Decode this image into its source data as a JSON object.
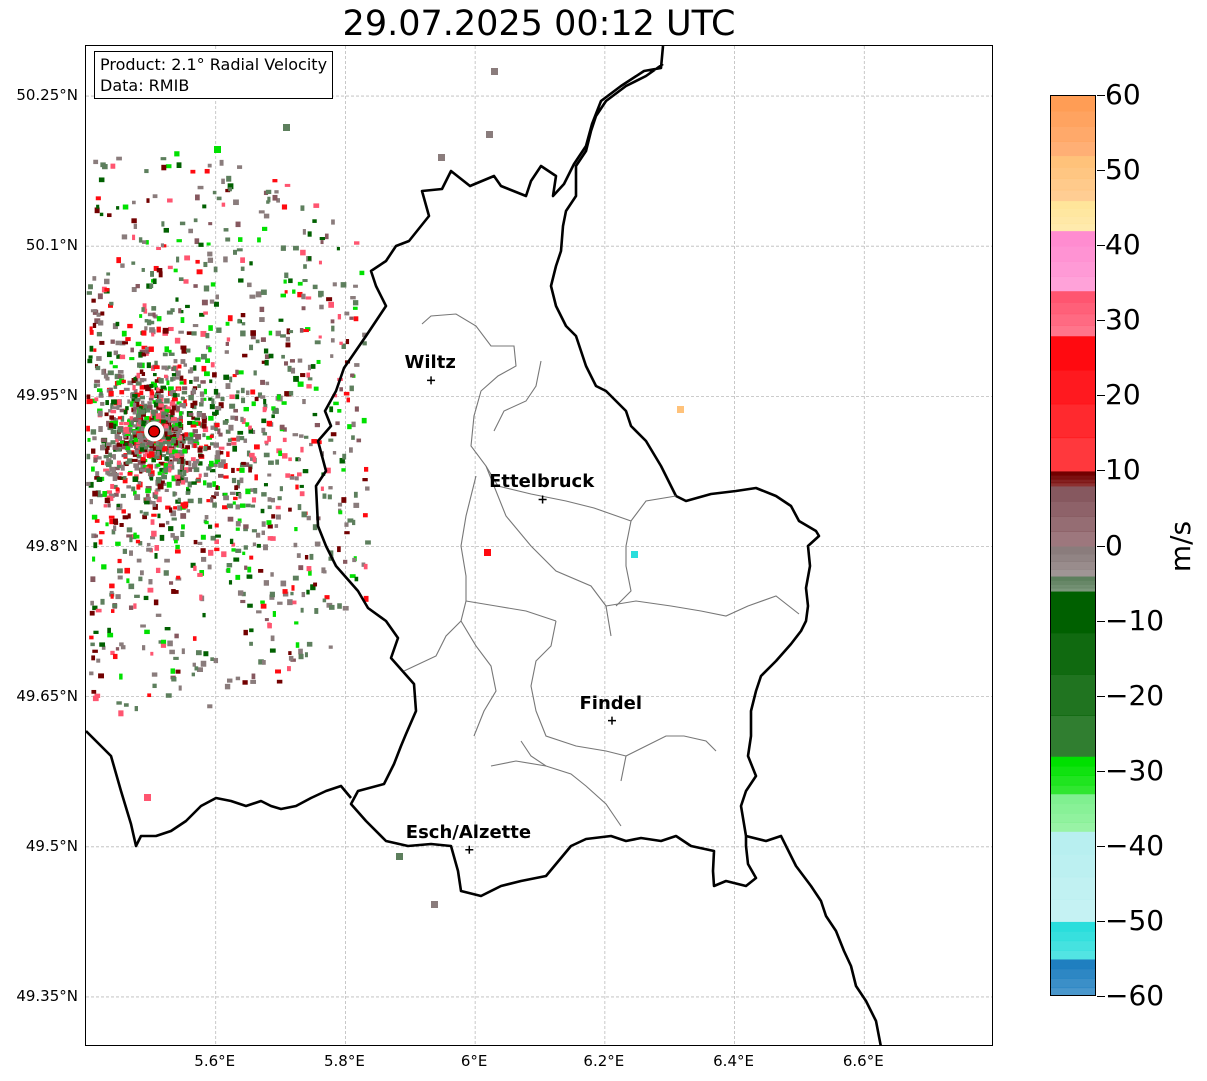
{
  "title": "29.07.2025 00:12 UTC",
  "info": {
    "product": "Product: 2.1° Radial Velocity",
    "source": "Data: RMIB"
  },
  "map": {
    "lat_range": [
      49.3,
      50.3
    ],
    "lon_range": [
      5.4,
      6.8
    ],
    "lat_ticks": [
      {
        "value": 50.25,
        "label": "50.25°N"
      },
      {
        "value": 50.1,
        "label": "50.1°N"
      },
      {
        "value": 49.95,
        "label": "49.95°N"
      },
      {
        "value": 49.8,
        "label": "49.8°N"
      },
      {
        "value": 49.65,
        "label": "49.65°N"
      },
      {
        "value": 49.5,
        "label": "49.5°N"
      },
      {
        "value": 49.35,
        "label": "49.35°N"
      }
    ],
    "lon_ticks": [
      {
        "value": 5.6,
        "label": "5.6°E"
      },
      {
        "value": 5.8,
        "label": "5.8°E"
      },
      {
        "value": 6.0,
        "label": "6°E"
      },
      {
        "value": 6.2,
        "label": "6.2°E"
      },
      {
        "value": 6.4,
        "label": "6.4°E"
      },
      {
        "value": 6.6,
        "label": "6.6°E"
      }
    ],
    "gridlines": true,
    "radar_site": {
      "lat": 49.915,
      "lon": 5.505
    },
    "cities": [
      {
        "name": "Wiltz",
        "lat": 49.966,
        "lon": 5.932
      },
      {
        "name": "Ettelbruck",
        "lat": 49.847,
        "lon": 6.104
      },
      {
        "name": "Findel",
        "lat": 49.626,
        "lon": 6.211
      },
      {
        "name": "Esch/Alzette",
        "lat": 49.497,
        "lon": 5.991
      }
    ]
  },
  "colorbar": {
    "unit": "m/s",
    "min": -60,
    "max": 60,
    "ticks": [
      {
        "value": 60,
        "label": "60"
      },
      {
        "value": 50,
        "label": "50"
      },
      {
        "value": 40,
        "label": "40"
      },
      {
        "value": 30,
        "label": "30"
      },
      {
        "value": 20,
        "label": "20"
      },
      {
        "value": 10,
        "label": "10"
      },
      {
        "value": 0,
        "label": "0"
      },
      {
        "value": -10,
        "label": "−10"
      },
      {
        "value": -20,
        "label": "−20"
      },
      {
        "value": -30,
        "label": "−30"
      },
      {
        "value": -40,
        "label": "−40"
      },
      {
        "value": -50,
        "label": "−50"
      },
      {
        "value": -60,
        "label": "−60"
      }
    ],
    "colors": {
      "high": "#ff9d55",
      "orange": "#ffc27a",
      "yellow": "#ffe59a",
      "pink": "#ff8cd0",
      "red_light": "#ff5570",
      "red": "#ff0a10",
      "dark_red": "#720000",
      "brownish": "#86585f",
      "grey": "#8a7c7c",
      "grey_green": "#5d7f5d",
      "dark_green": "#006000",
      "green": "#00e000",
      "light_green": "#80f090",
      "pale_cyan": "#b8eff0",
      "cyan": "#2adedc",
      "blue": "#1f7fc0"
    }
  }
}
